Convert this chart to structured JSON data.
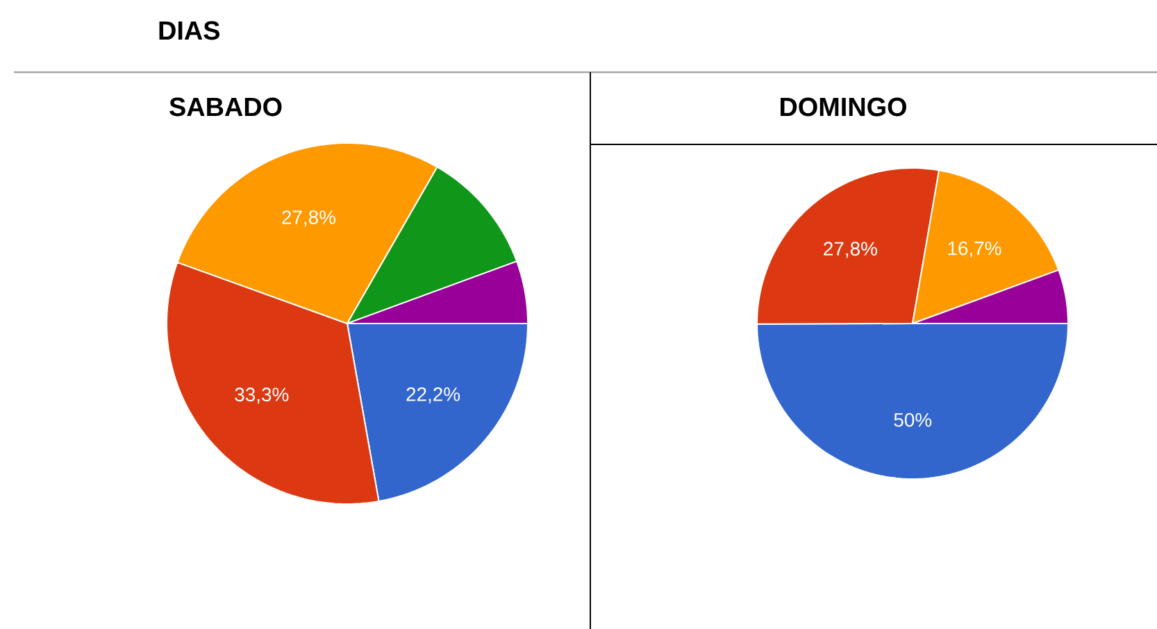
{
  "chart_data": [
    {
      "type": "pie",
      "title": "SABADO",
      "annotations": [
        "DIAS"
      ],
      "categories": [
        null,
        null,
        null,
        null,
        null
      ],
      "values": [
        22.2,
        33.3,
        27.8,
        11.1,
        5.6
      ],
      "colors": [
        "#3366cc",
        "#dc3912",
        "#ff9900",
        "#109618",
        "#990099"
      ],
      "value_labels": [
        "22,2%",
        "33,3%",
        "27,8%",
        null,
        null
      ]
    },
    {
      "type": "pie",
      "title": "DOMINGO",
      "categories": [
        null,
        null,
        null,
        null
      ],
      "values": [
        50,
        27.8,
        16.7,
        5.6
      ],
      "colors": [
        "#3366cc",
        "#dc3912",
        "#ff9900",
        "#990099"
      ],
      "value_labels": [
        "50%",
        "27,8%",
        "16,7%",
        null
      ]
    }
  ]
}
